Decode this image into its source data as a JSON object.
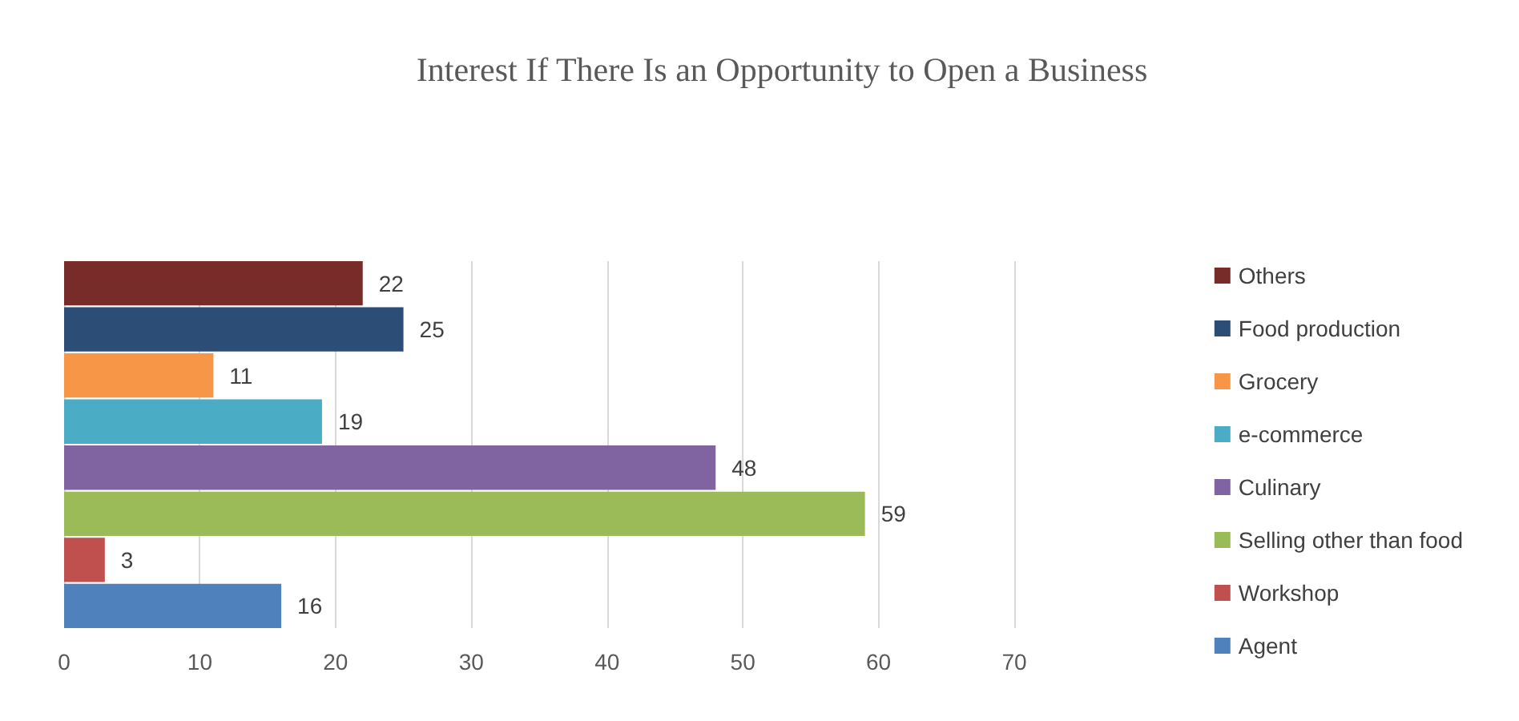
{
  "chart_data": {
    "type": "bar",
    "orientation": "horizontal",
    "title": "Interest If There Is an Opportunity to Open a Business",
    "categories": [
      null
    ],
    "series": [
      {
        "name": "Others",
        "color": "#772c2a",
        "values": [
          22
        ]
      },
      {
        "name": "Food production",
        "color": "#2c4d75",
        "values": [
          25
        ]
      },
      {
        "name": "Grocery",
        "color": "#f79646",
        "values": [
          11
        ]
      },
      {
        "name": "e-commerce",
        "color": "#4bacc6",
        "values": [
          19
        ]
      },
      {
        "name": "Culinary",
        "color": "#8064a2",
        "values": [
          48
        ]
      },
      {
        "name": "Selling other than food",
        "color": "#9bbb59",
        "values": [
          59
        ]
      },
      {
        "name": "Workshop",
        "color": "#c0504d",
        "values": [
          3
        ]
      },
      {
        "name": "Agent",
        "color": "#4f81bd",
        "values": [
          16
        ]
      }
    ],
    "xlim": [
      0,
      70
    ],
    "xticks": [
      0,
      10,
      20,
      30,
      40,
      50,
      60,
      70
    ],
    "grid": "x",
    "legend": "right",
    "data_labels": true
  }
}
